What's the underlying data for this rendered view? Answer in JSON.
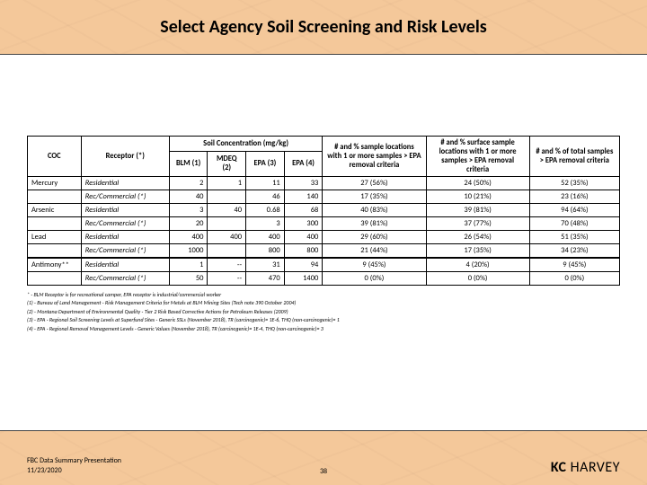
{
  "title": "Select Agency Soil Screening and Risk Levels",
  "table": {
    "spanner": "Soil Concentration (mg/kg)",
    "head": {
      "coc": "COC",
      "receptor": "Receptor (*)",
      "blm": "BLM (1)",
      "mdeq": "MDEQ (2)",
      "epa3": "EPA (3)",
      "epa4": "EPA (4)",
      "sample_crit": "# and % sample locations with 1 or more samples > EPA removal criteria",
      "surface_crit": "# and % surface sample locations with 1 or more samples > EPA removal criteria",
      "total_crit": "# and % of total samples > EPA removal criteria"
    },
    "rows": [
      {
        "coc": "Mercury",
        "rec": "Residential",
        "blm": "2",
        "mdeq": "1",
        "epa3": "11",
        "epa4": "33",
        "sc": "27 (56%)",
        "surf": "24 (50%)",
        "tot": "52 (35%)"
      },
      {
        "coc": "",
        "rec": "Rec/Commercial (*)",
        "blm": "40",
        "mdeq": "",
        "epa3": "46",
        "epa4": "140",
        "sc": "17 (35%)",
        "surf": "10 (21%)",
        "tot": "23 (16%)"
      },
      {
        "coc": "Arsenic",
        "rec": "Residential",
        "blm": "3",
        "mdeq": "40",
        "epa3": "0.68",
        "epa4": "68",
        "sc": "40 (83%)",
        "surf": "39 (81%)",
        "tot": "94 (64%)"
      },
      {
        "coc": "",
        "rec": "Rec/Commercial (*)",
        "blm": "20",
        "mdeq": "",
        "epa3": "3",
        "epa4": "300",
        "sc": "39 (81%)",
        "surf": "37 (77%)",
        "tot": "70 (48%)"
      },
      {
        "coc": "Lead",
        "rec": "Residential",
        "blm": "400",
        "mdeq": "400",
        "epa3": "400",
        "epa4": "400",
        "sc": "29 (60%)",
        "surf": "26 (54%)",
        "tot": "51 (35%)"
      },
      {
        "coc": "",
        "rec": "Rec/Commercial (*)",
        "blm": "1000",
        "mdeq": "",
        "epa3": "800",
        "epa4": "800",
        "sc": "21 (44%)",
        "surf": "17 (35%)",
        "tot": "34 (23%)"
      },
      {
        "coc": "Antimony**",
        "rec": "Residential",
        "blm": "1",
        "mdeq": "--",
        "epa3": "31",
        "epa4": "94",
        "sc": "9 (45%)",
        "surf": "4 (20%)",
        "tot": "9 (45%)",
        "sep": true
      },
      {
        "coc": "",
        "rec": "Rec/Commercial (*)",
        "blm": "50",
        "mdeq": "--",
        "epa3": "470",
        "epa4": "1400",
        "sc": "0 (0%)",
        "surf": "0 (0%)",
        "tot": "0 (0%)"
      }
    ]
  },
  "footnotes": [
    "* - BLM Receptor is for recreational camper, EPA receptor is industrial/commercial worker",
    "(1) - Bureau of Land Management - Risk Management Criteria for Metals at BLM Mining Sites (Tech note 390 October 2004)",
    "(2) - Montana Department of Environmental Quality - Tier 2 Risk Based Corrective Actions for Petroleum Releases (2009)",
    "(3) - EPA - Regional Soil Screening Levels at Superfund Sites - Generic SSLs (November 2018), TR (carcinogenic)= 1E-6, THQ (non-carcinogenic)= 1",
    "(4) - EPA - Regional Removal Management Levels - Generic Values (November 2018), TR (carcinogenic)= 1E-4, THQ (non-carcinogenic)= 3"
  ],
  "footer": {
    "caption": "FBC Data Summary Presentation",
    "date": "11/23/2020",
    "page": "38",
    "logo_a": "KC",
    "logo_b": "HARVEY"
  },
  "colors": {
    "page_bg": "#f4c89a",
    "band_bg": "#ffffff",
    "border": "#000000"
  }
}
